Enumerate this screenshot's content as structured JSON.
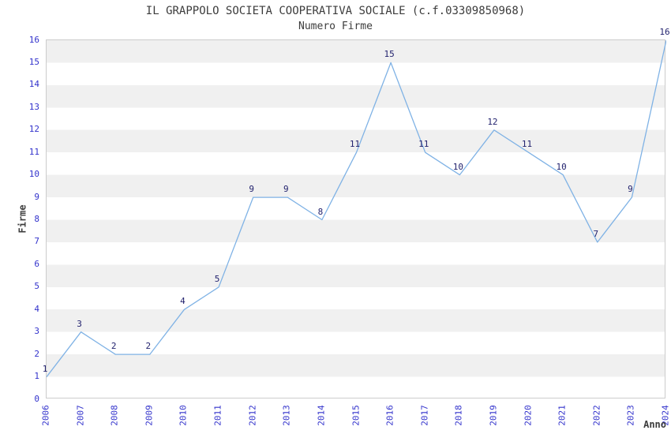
{
  "title": "IL GRAPPOLO SOCIETA COOPERATIVA SOCIALE (c.f.03309850968)",
  "subtitle": "Numero Firme",
  "chart_data": {
    "type": "line",
    "title": "IL GRAPPOLO SOCIETA COOPERATIVA SOCIALE (c.f.03309850968)",
    "subtitle": "Numero Firme",
    "xlabel": "Anno",
    "ylabel": "Firme",
    "x": [
      2006,
      2007,
      2008,
      2009,
      2010,
      2011,
      2012,
      2013,
      2014,
      2015,
      2016,
      2017,
      2018,
      2019,
      2020,
      2021,
      2022,
      2023,
      2024
    ],
    "values": [
      1,
      3,
      2,
      2,
      4,
      5,
      9,
      9,
      8,
      11,
      15,
      11,
      10,
      12,
      11,
      10,
      7,
      9,
      16
    ],
    "ylim": [
      0,
      16
    ],
    "ytick_step": 1,
    "grid": "alternating horizontal bands",
    "legend": "none",
    "colors": {
      "line": "#7fb2e5",
      "tick_label": "#3333cc",
      "point_label": "#22226e",
      "band_gray": "#f0f0f0",
      "band_white": "#ffffff",
      "plot_border": "#cccccc",
      "title_text": "#3c3c3c"
    }
  }
}
